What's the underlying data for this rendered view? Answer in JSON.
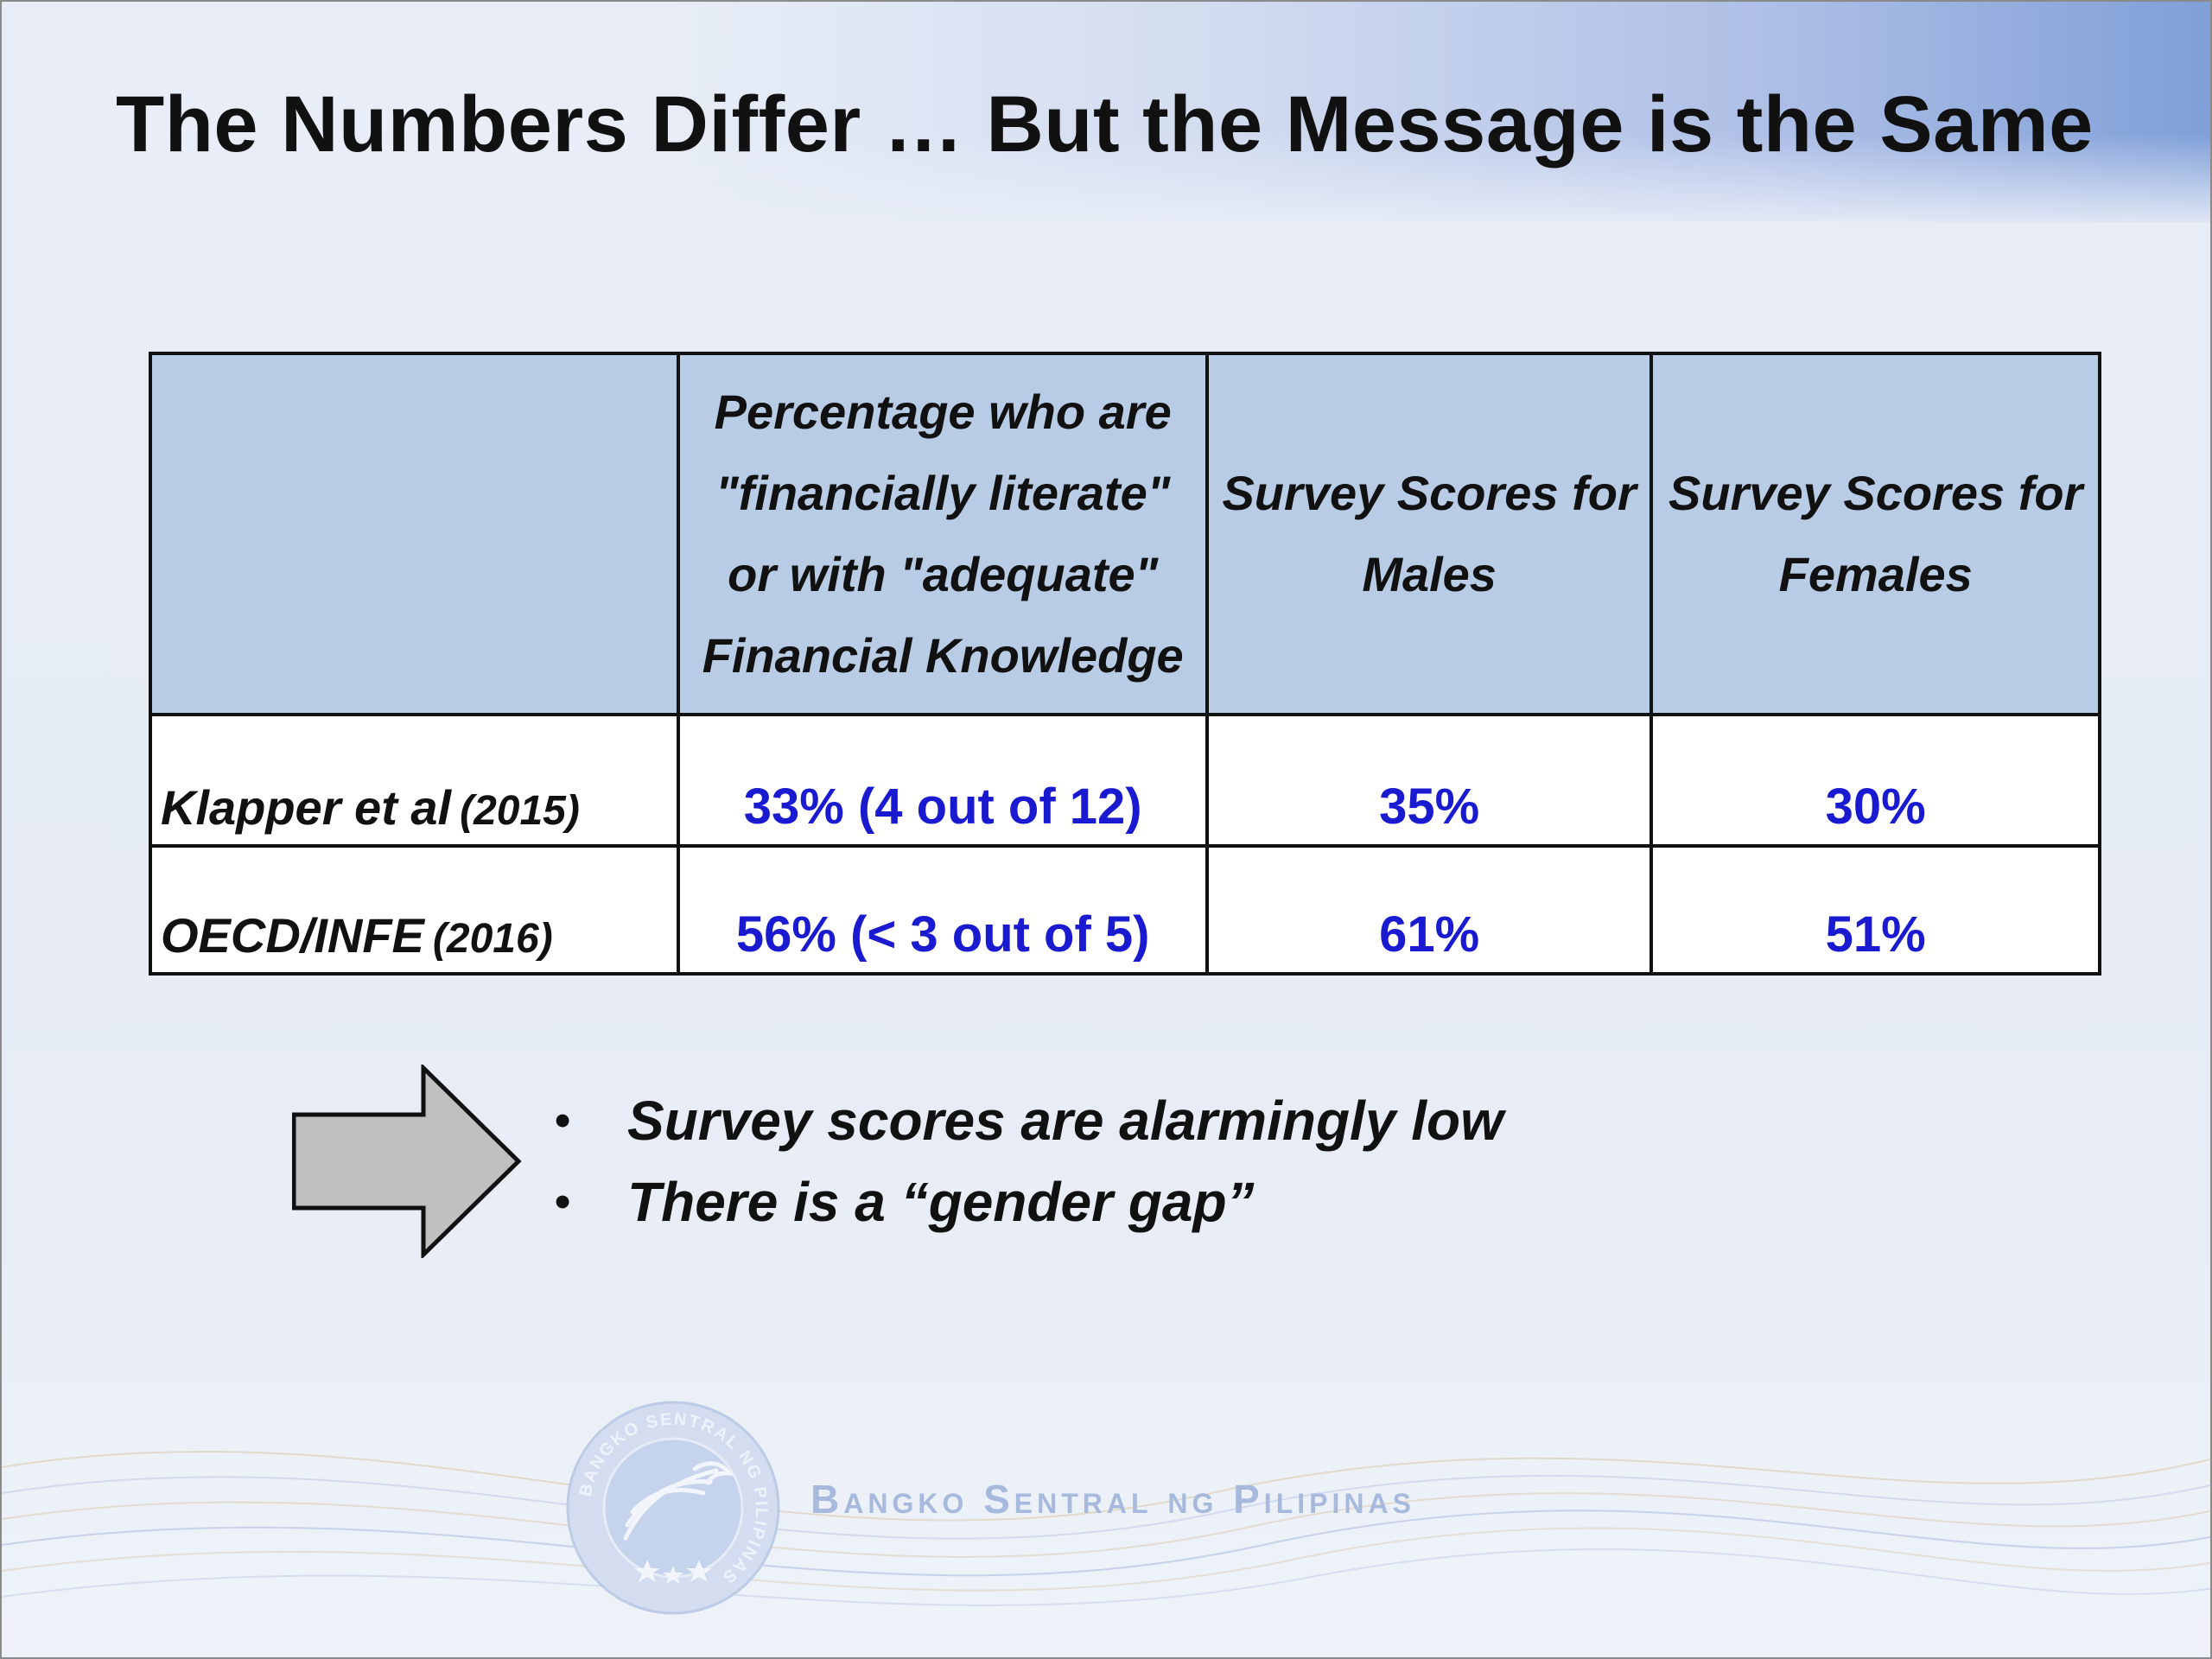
{
  "slide": {
    "title": "The Numbers Differ … But the Message is the Same"
  },
  "table": {
    "headers": [
      "",
      "Percentage who are \"financially literate\" or with \"adequate\" Financial Knowledge",
      "Survey Scores for Males",
      "Survey Scores for Females"
    ],
    "rows": [
      {
        "source": "Klapper et al",
        "year": "(2015)",
        "pct": "33% (4 out of 12)",
        "males": "35%",
        "females": "30%"
      },
      {
        "source": "OECD/INFE",
        "year": "(2016)",
        "pct": "56% (< 3 out of 5)",
        "males": "61%",
        "females": "51%"
      }
    ]
  },
  "bullets": [
    "Survey scores are alarmingly low",
    "There is a “gender gap”"
  ],
  "footer": {
    "bank_name": "Bangko Sentral ng Pilipinas",
    "seal_text": "BANGKO SENTRAL NG PILIPINAS"
  },
  "colors": {
    "header_fill": "#b8cce6",
    "value_text": "#1a1ad0",
    "arrow_fill": "#c0c0c0",
    "bank_name": "#a7b9dc"
  }
}
